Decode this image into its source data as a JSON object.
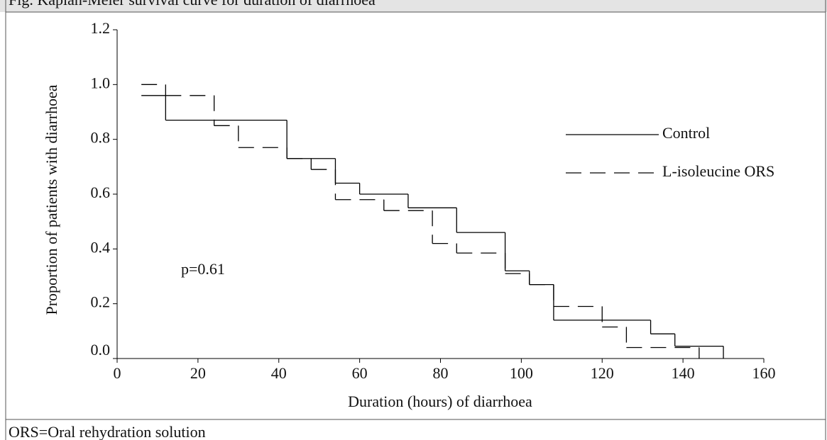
{
  "chart_data": {
    "type": "step",
    "title": "Fig. Kaplan-Meier survival curve for duration of diarrhoea",
    "footnote": "ORS=Oral rehydration solution",
    "xlabel": "Duration (hours) of diarrhoea",
    "ylabel": "Proportion of patients with diarrhoea",
    "annotation": "p=0.61",
    "xlim": [
      0,
      160
    ],
    "xticks": [
      0,
      20,
      40,
      60,
      80,
      100,
      120,
      140,
      160
    ],
    "ylim": [
      0,
      1.2
    ],
    "yticks": [
      {
        "value": 0,
        "label": "0.0"
      },
      0.2,
      0.4,
      0.6,
      0.8,
      {
        "value": 1,
        "label": "1.0"
      },
      1.2
    ],
    "series": [
      {
        "name": "Control",
        "color": "#000000",
        "dash": "solid",
        "x": [
          6,
          12,
          42,
          54,
          60,
          72,
          84,
          96,
          102,
          108,
          132,
          138,
          150
        ],
        "values": [
          0.96,
          0.87,
          0.73,
          0.64,
          0.6,
          0.55,
          0.46,
          0.32,
          0.27,
          0.14,
          0.09,
          0.045,
          0
        ]
      },
      {
        "name": "L-isoleucine ORS",
        "color": "#000000",
        "dash": "dashed",
        "x": [
          6,
          12,
          24,
          30,
          42,
          48,
          54,
          66,
          78,
          84,
          96,
          102,
          108,
          120,
          126,
          144
        ],
        "values": [
          1,
          0.96,
          0.85,
          0.77,
          0.73,
          0.69,
          0.58,
          0.54,
          0.42,
          0.385,
          0.31,
          0.27,
          0.19,
          0.115,
          0.04,
          0
        ]
      }
    ]
  }
}
